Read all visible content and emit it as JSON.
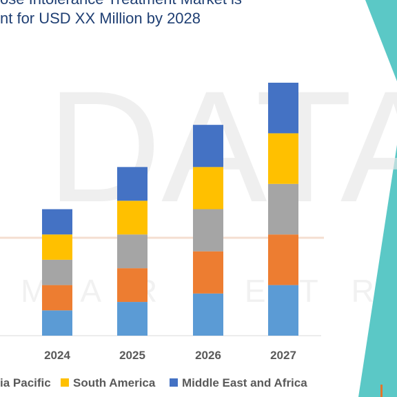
{
  "title": {
    "line1": "ose Intolerance Treatment Market is",
    "line2": "nt for USD XX Million by 2028"
  },
  "watermark": {
    "top": "DATABR",
    "bottom": "MARKETRE"
  },
  "colors": {
    "teal_accent": "#5bc8c6",
    "title": "#1f3f73",
    "axis_text": "#595959"
  },
  "chart_data": {
    "type": "bar",
    "stacked": true,
    "categories": [
      "2024",
      "2025",
      "2026",
      "2027"
    ],
    "series": [
      {
        "name": "",
        "color": "#5b9bd5",
        "values": [
          1.5,
          2.0,
          2.5,
          3.0
        ]
      },
      {
        "name": "",
        "color": "#ed7d31",
        "values": [
          1.5,
          2.0,
          2.5,
          3.0
        ]
      },
      {
        "name": "",
        "color": "#a5a5a5",
        "values": [
          1.5,
          2.0,
          2.5,
          3.0
        ]
      },
      {
        "name": "South America",
        "color": "#ffc000",
        "values": [
          1.5,
          2.0,
          2.5,
          3.0
        ]
      },
      {
        "name": "Middle East and Africa",
        "color": "#4472c4",
        "values": [
          1.5,
          2.0,
          2.5,
          3.0
        ]
      }
    ],
    "legend": {
      "position": "bottom",
      "items": [
        {
          "label": "ia Pacific",
          "color": "#a5a5a5"
        },
        {
          "label": "South America",
          "color": "#ffc000"
        },
        {
          "label": "Middle East and Africa",
          "color": "#4472c4"
        }
      ]
    },
    "ylim": [
      0,
      15
    ],
    "grid": false
  }
}
